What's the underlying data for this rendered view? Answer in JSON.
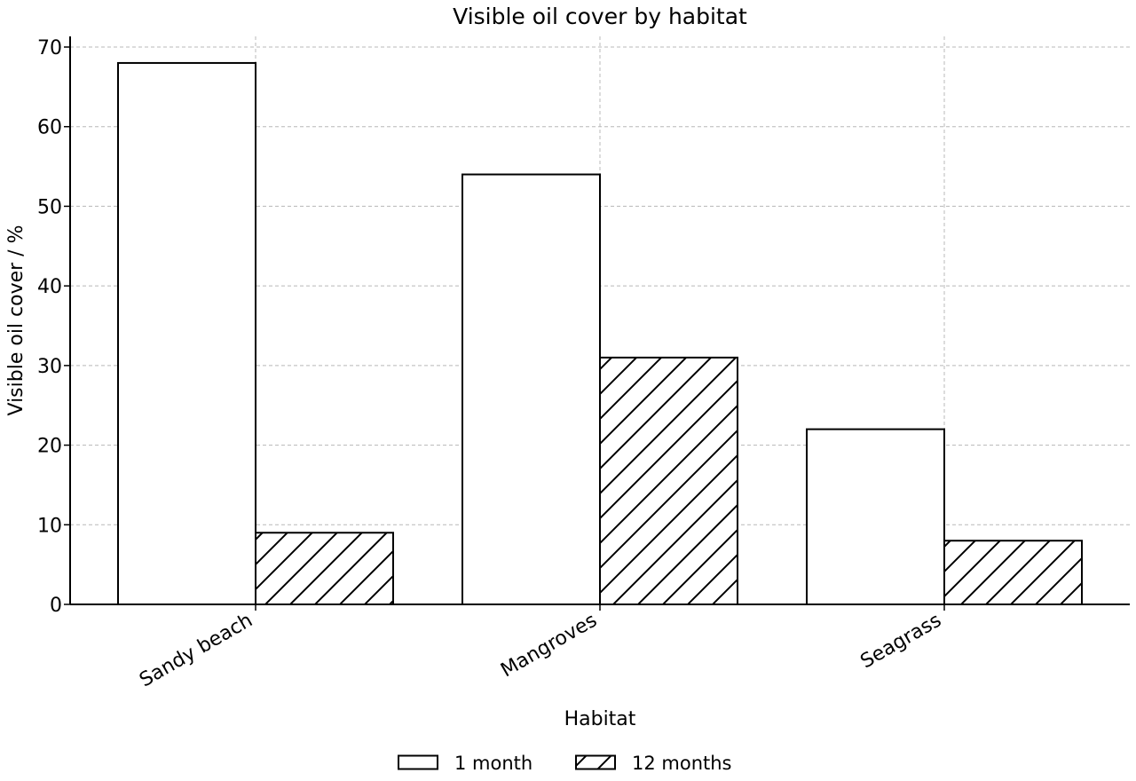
{
  "chart_data": {
    "type": "bar",
    "title": "Visible oil cover by habitat",
    "xlabel": "Habitat",
    "ylabel": "Visible oil cover / %",
    "categories": [
      "Sandy beach",
      "Mangroves",
      "Seagrass"
    ],
    "series": [
      {
        "name": "1 month",
        "values": [
          68,
          54,
          22
        ],
        "fill": "none"
      },
      {
        "name": "12 months",
        "values": [
          9,
          31,
          8
        ],
        "fill": "hatch"
      }
    ],
    "ylim": [
      0,
      70
    ],
    "yticks": [
      0,
      10,
      20,
      30,
      40,
      50,
      60,
      70
    ],
    "grid": true,
    "legend_position": "bottom-center",
    "colors": {
      "edge": "#000000",
      "face": "#ffffff",
      "grid": "#b8b8b8"
    }
  }
}
